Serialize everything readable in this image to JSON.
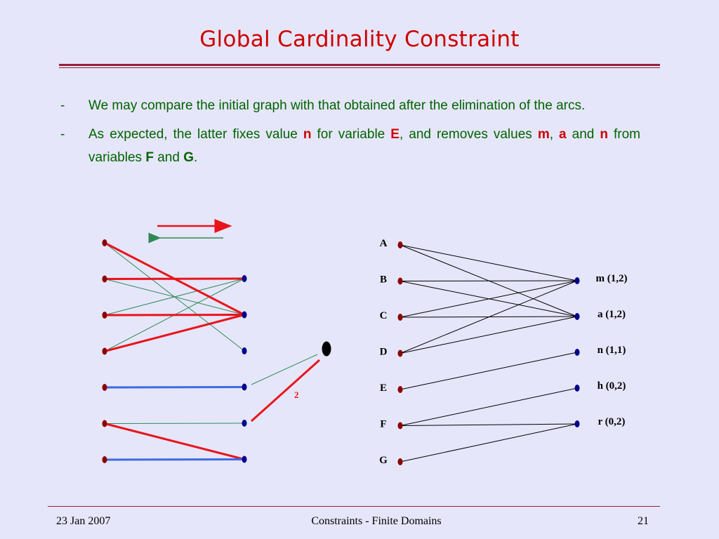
{
  "slide": {
    "title": "Global Cardinality Constraint",
    "bullets": [
      {
        "dash": "-",
        "parts": [
          {
            "t": "We may compare the initial graph with that obtained after the elimination of the arcs.",
            "s": "plain"
          }
        ]
      },
      {
        "dash": "-",
        "parts": [
          {
            "t": "As expected, the latter fixes value ",
            "s": "plain"
          },
          {
            "t": "n",
            "s": "red"
          },
          {
            "t": " for variable ",
            "s": "plain"
          },
          {
            "t": "E",
            "s": "red"
          },
          {
            "t": ", and removes values ",
            "s": "plain"
          },
          {
            "t": "m",
            "s": "red"
          },
          {
            "t": ", ",
            "s": "plain"
          },
          {
            "t": "a",
            "s": "red"
          },
          {
            "t": " and ",
            "s": "plain"
          },
          {
            "t": "n",
            "s": "red"
          },
          {
            "t": " from variables ",
            "s": "plain"
          },
          {
            "t": "F",
            "s": "grn"
          },
          {
            "t": " and ",
            "s": "plain"
          },
          {
            "t": "G",
            "s": "grn"
          },
          {
            "t": ".",
            "s": "plain"
          }
        ]
      }
    ],
    "footer": {
      "date": "23 Jan 2007",
      "center": "Constraints - Finite Domains",
      "page": "21"
    }
  },
  "colors": {
    "background": "#e6e6fa",
    "title": "#cc0000",
    "text": "#006400",
    "flow_red": "#e8141c",
    "flow_blue": "#3d6be0",
    "residual_green": "#2e8b57",
    "left_node": "#8b0000",
    "right_node": "#00008b"
  },
  "flow_graph": {
    "legend_arrows": [
      {
        "direction": "right",
        "color": "red"
      },
      {
        "direction": "left",
        "color": "green"
      }
    ],
    "left_nodes": 7,
    "right_nodes": 6,
    "sink_node": true,
    "edges": [
      {
        "from": 0,
        "to": 1,
        "kind": "red"
      },
      {
        "from": 1,
        "to": 0,
        "kind": "red"
      },
      {
        "from": 2,
        "to": 1,
        "kind": "red"
      },
      {
        "from": 3,
        "to": 1,
        "kind": "red"
      },
      {
        "from": 4,
        "to": 3,
        "kind": "blue"
      },
      {
        "from": 5,
        "to": 5,
        "kind": "red"
      },
      {
        "from": 6,
        "to": 5,
        "kind": "blue"
      },
      {
        "from": 0,
        "to": 2,
        "kind": "green"
      },
      {
        "from": 1,
        "to": 1,
        "kind": "green"
      },
      {
        "from": 2,
        "to": 0,
        "kind": "green"
      },
      {
        "from": 3,
        "to": 0,
        "kind": "green"
      },
      {
        "from": 5,
        "to": 4,
        "kind": "green"
      }
    ],
    "sink_edges": [
      {
        "from_right": 5,
        "kind": "red",
        "label": "2"
      },
      {
        "from_right": 4,
        "kind": "green"
      }
    ]
  },
  "bipartite": {
    "variables": [
      "A",
      "B",
      "C",
      "D",
      "E",
      "F",
      "G"
    ],
    "values": [
      "m (1,2)",
      "a (1,2)",
      "n (1,1)",
      "h (0,2)",
      "r (0,2)"
    ],
    "edges": [
      [
        0,
        0
      ],
      [
        0,
        1
      ],
      [
        1,
        0
      ],
      [
        1,
        1
      ],
      [
        2,
        0
      ],
      [
        2,
        1
      ],
      [
        3,
        0
      ],
      [
        3,
        1
      ],
      [
        4,
        2
      ],
      [
        5,
        3
      ],
      [
        5,
        4
      ],
      [
        6,
        4
      ]
    ]
  }
}
